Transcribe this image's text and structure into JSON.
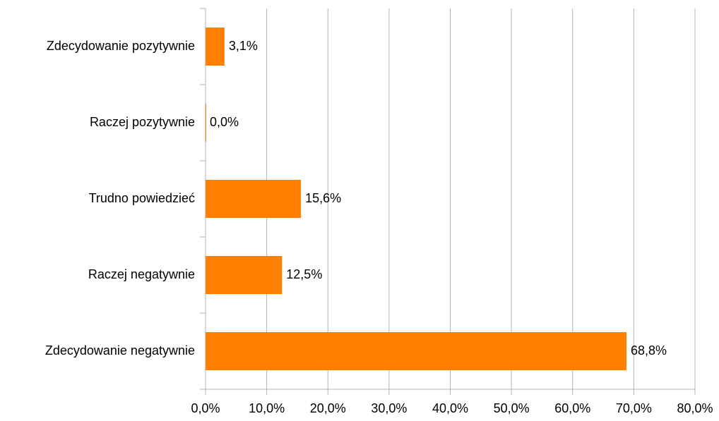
{
  "chart_data": {
    "type": "barh",
    "categories": [
      "Zdecydowanie pozytywnie",
      "Raczej pozytywnie",
      "Trudno powiedzieć",
      "Raczej negatywnie",
      "Zdecydowanie negatywnie"
    ],
    "values": [
      3.1,
      0.0,
      15.6,
      12.5,
      68.8
    ],
    "value_labels": [
      "3,1%",
      "0,0%",
      "15,6%",
      "12,5%",
      "68,8%"
    ],
    "color": "#ff7f00",
    "xlim": [
      0,
      80
    ],
    "xticks": [
      {
        "value": 0,
        "label": "0,0%"
      },
      {
        "value": 10,
        "label": "10,0%"
      },
      {
        "value": 20,
        "label": "20,0%"
      },
      {
        "value": 30,
        "label": "30,0%"
      },
      {
        "value": 40,
        "label": "40,0%"
      },
      {
        "value": 50,
        "label": "50,0%"
      },
      {
        "value": 60,
        "label": "60,0%"
      },
      {
        "value": 70,
        "label": "70,0%"
      },
      {
        "value": 80,
        "label": "80,0%"
      }
    ],
    "grid": true
  }
}
